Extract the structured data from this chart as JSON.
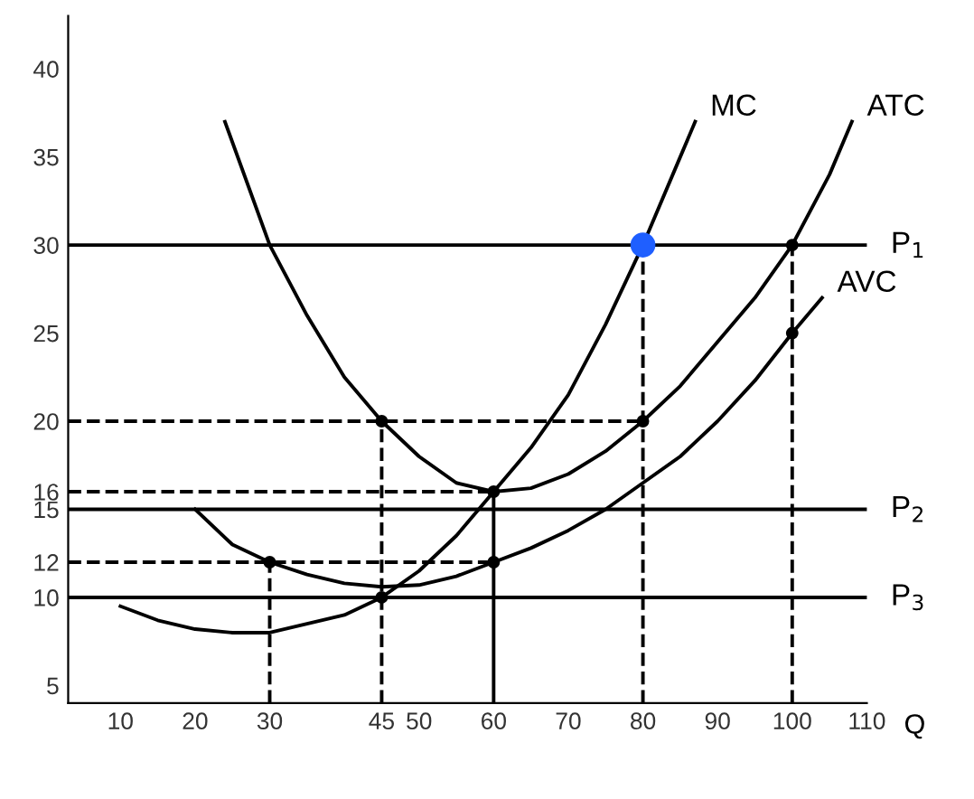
{
  "chart_data": {
    "type": "line",
    "xlabel": "Q",
    "xlim": [
      3,
      110
    ],
    "ylim": [
      4,
      43
    ],
    "xticks": [
      10,
      20,
      30,
      45,
      50,
      60,
      70,
      80,
      90,
      100,
      110
    ],
    "yticks": [
      5,
      10,
      12,
      15,
      16,
      20,
      25,
      30,
      35,
      40
    ],
    "grid": false,
    "legend": false,
    "marker": "none",
    "series": [
      {
        "name": "ATC",
        "color": "#000000",
        "line_style": "solid",
        "x": [
          24,
          30,
          35,
          40,
          45,
          50,
          55,
          60,
          65,
          70,
          75,
          80,
          85,
          90,
          95,
          100,
          105,
          108
        ],
        "values": [
          37,
          30,
          26,
          22.5,
          20,
          18,
          16.5,
          16,
          16.2,
          17,
          18.3,
          20,
          22,
          24.5,
          27,
          30,
          34,
          37
        ]
      },
      {
        "name": "MC",
        "color": "#000000",
        "line_style": "solid",
        "x": [
          10,
          15,
          20,
          25,
          30,
          35,
          40,
          45,
          50,
          55,
          60,
          65,
          70,
          75,
          80,
          85,
          87
        ],
        "values": [
          9.5,
          8.7,
          8.2,
          8,
          8,
          8.5,
          9,
          10,
          11.5,
          13.5,
          16,
          18.5,
          21.5,
          25.5,
          30,
          35,
          37
        ]
      },
      {
        "name": "AVC",
        "color": "#000000",
        "line_style": "solid",
        "x": [
          20,
          25,
          30,
          35,
          40,
          45,
          50,
          55,
          60,
          65,
          70,
          75,
          80,
          85,
          90,
          95,
          100,
          104
        ],
        "values": [
          15,
          13,
          12,
          11.3,
          10.8,
          10.6,
          10.7,
          11.2,
          12,
          12.8,
          13.8,
          15,
          16.5,
          18,
          20,
          22.3,
          25,
          27
        ]
      },
      {
        "color": "#000000",
        "line_style": "dashed",
        "x": [
          3,
          80
        ],
        "values": [
          20,
          20
        ]
      },
      {
        "color": "#000000",
        "line_style": "dashed",
        "x": [
          3,
          60
        ],
        "values": [
          16,
          16
        ]
      },
      {
        "color": "#000000",
        "line_style": "dashed",
        "x": [
          3,
          60
        ],
        "values": [
          12,
          12
        ]
      },
      {
        "color": "#000000",
        "line_style": "dashed",
        "x": [
          30,
          30
        ],
        "values": [
          4,
          12
        ]
      },
      {
        "color": "#000000",
        "line_style": "dashed",
        "x": [
          45,
          45
        ],
        "values": [
          4,
          20
        ]
      },
      {
        "color": "#000000",
        "line_style": "dashed",
        "x": [
          80,
          80
        ],
        "values": [
          4,
          30
        ]
      },
      {
        "color": "#000000",
        "line_style": "dashed",
        "x": [
          100,
          100
        ],
        "values": [
          4,
          30
        ]
      },
      {
        "color": "#000000",
        "line_style": "solid",
        "x": [
          60,
          60
        ],
        "values": [
          4,
          16
        ]
      },
      {
        "type": "scatter",
        "color": "#000000",
        "marker": "circle",
        "x": [
          30,
          45,
          45,
          60,
          60,
          80,
          100,
          100
        ],
        "values": [
          12,
          10,
          20,
          16,
          12,
          20,
          30,
          25
        ]
      },
      {
        "type": "scatter",
        "color": "#1f5fff",
        "marker": "circle",
        "x": [
          80
        ],
        "values": [
          30
        ]
      }
    ],
    "ref_lines": [
      {
        "axis": "y",
        "value": 30,
        "label": "P$_{1}$"
      },
      {
        "axis": "y",
        "value": 15,
        "label": "P$_{2}$"
      },
      {
        "axis": "y",
        "value": 10,
        "label": "P$_{3}$"
      }
    ]
  }
}
